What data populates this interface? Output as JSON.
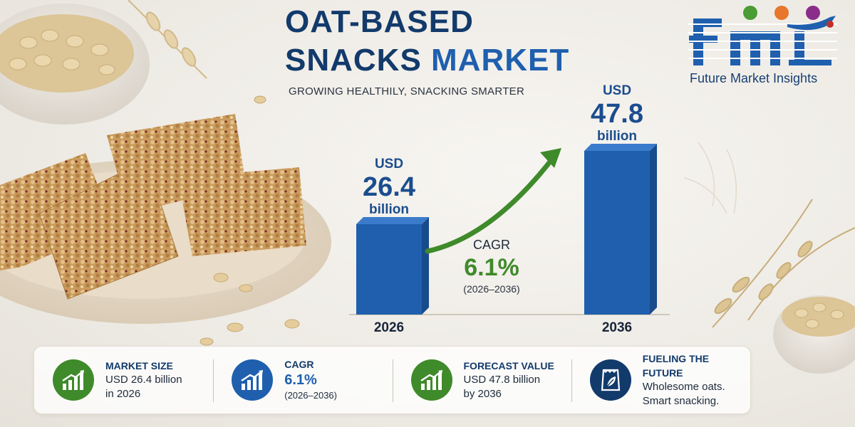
{
  "header": {
    "title_line1": "OAT-BASED",
    "title_line2a": "SNACKS",
    "title_line2b": "MARKET",
    "subtitle": "GROWING HEALTHILY, SNACKING SMARTER"
  },
  "logo": {
    "text": "Future Market Insights",
    "colors": {
      "primary": "#1f5fae",
      "green": "#4a9c34",
      "orange": "#e8762c",
      "purple": "#8a2d8a",
      "red": "#c0302a"
    }
  },
  "chart_data": {
    "type": "bar",
    "categories": [
      "2026",
      "2036"
    ],
    "values": [
      26.4,
      47.8
    ],
    "unit_prefix": "USD",
    "unit_suffix": "billion",
    "value_labels": [
      "26.4",
      "47.8"
    ],
    "cagr": {
      "label": "CAGR",
      "value": "6.1%",
      "period": "(2026–2036)"
    },
    "bar_color": "#1f5fae",
    "arrow_color": "#3f8a2a"
  },
  "stats": [
    {
      "icon": "growth-chart-icon",
      "color": "green",
      "heading": "MARKET SIZE",
      "line1": "USD 26.4 billion",
      "line2": "in 2026"
    },
    {
      "icon": "growth-chart-icon",
      "color": "blue",
      "heading": "CAGR",
      "line1": "6.1%",
      "line2": "(2026–2036)"
    },
    {
      "icon": "growth-chart-icon",
      "color": "green",
      "heading": "FORECAST VALUE",
      "line1": "USD 47.8 billion",
      "line2": "by 2036"
    },
    {
      "icon": "snack-bag-icon",
      "color": "navy",
      "heading": "FUELING THE FUTURE",
      "line1": "Wholesome oats.",
      "line2": "Smart snacking."
    }
  ]
}
